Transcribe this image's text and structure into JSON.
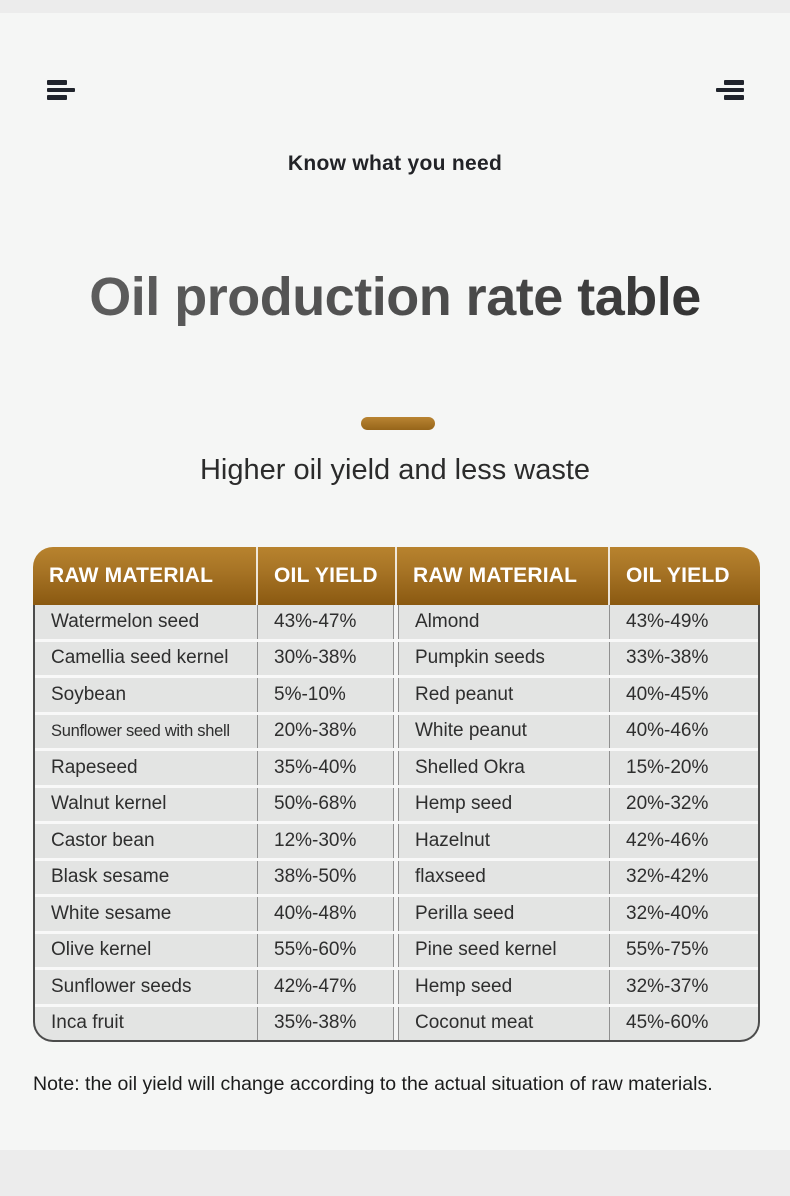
{
  "page": {
    "tagline": "Know what you need",
    "title": "Oil production rate table",
    "subtitle": "Higher oil yield and less waste",
    "note": "Note: the oil yield will change according to the actual situation of raw materials."
  },
  "icons": {
    "left_menu": "three-bars-left-aligned",
    "right_menu": "three-bars-right-aligned"
  },
  "colors": {
    "page_bg": "#f5f6f5",
    "edge_band": "#ececec",
    "accent_brown_light": "#b8832e",
    "accent_brown_dark": "#8a5911",
    "header_text": "#ffffff",
    "row_bg": "#e3e4e3",
    "row_separator": "#f8f8f8",
    "cell_divider": "#909090",
    "table_border": "#4c4c4c",
    "cell_text": "#2e2e2e",
    "title_gray_left": "#616161",
    "title_gray_right": "#2b2b2b"
  },
  "table": {
    "headers": [
      "RAW MATERIAL",
      "OIL YIELD",
      "RAW MATERIAL",
      "OIL YIELD"
    ],
    "rows": [
      [
        "Watermelon seed",
        "43%-47%",
        "Almond",
        "43%-49%"
      ],
      [
        "Camellia seed kernel",
        "30%-38%",
        "Pumpkin seeds",
        "33%-38%"
      ],
      [
        "Soybean",
        "5%-10%",
        "Red peanut",
        "40%-45%"
      ],
      [
        "Sunflower seed with shell",
        "20%-38%",
        "White peanut",
        "40%-46%"
      ],
      [
        "Rapeseed",
        "35%-40%",
        "Shelled Okra",
        "15%-20%"
      ],
      [
        "Walnut kernel",
        "50%-68%",
        "Hemp seed",
        "20%-32%"
      ],
      [
        "Castor bean",
        "12%-30%",
        "Hazelnut",
        "42%-46%"
      ],
      [
        "Blask sesame",
        "38%-50%",
        "flaxseed",
        "32%-42%"
      ],
      [
        "White sesame",
        "40%-48%",
        "Perilla seed",
        "32%-40%"
      ],
      [
        "Olive kernel",
        "55%-60%",
        "Pine seed kernel",
        "55%-75%"
      ],
      [
        "Sunflower seeds",
        "42%-47%",
        "Hemp seed",
        "32%-37%"
      ],
      [
        "Inca fruit",
        "35%-38%",
        "Coconut meat",
        "45%-60%"
      ]
    ]
  }
}
